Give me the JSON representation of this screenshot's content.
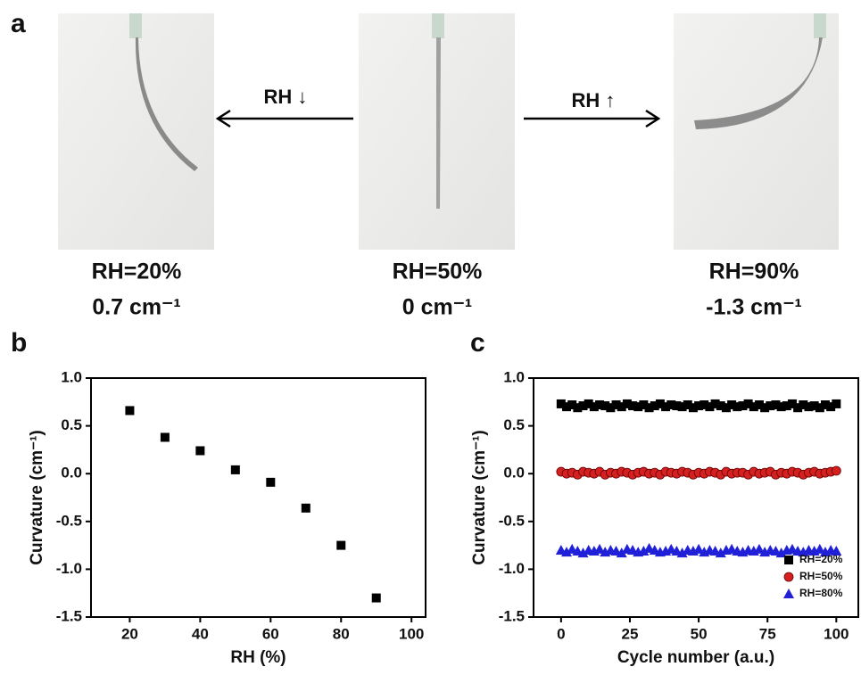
{
  "panel_a": {
    "letter": "a",
    "arrow_left_label": "RH ↓",
    "arrow_right_label": "RH ↑",
    "photos": [
      {
        "rh": "RH=20%",
        "curvature": "0.7 cm⁻¹"
      },
      {
        "rh": "RH=50%",
        "curvature": "0 cm⁻¹"
      },
      {
        "rh": "RH=90%",
        "curvature": "-1.3 cm⁻¹"
      }
    ]
  },
  "chart_data": [
    {
      "type": "scatter",
      "panel_label": "b",
      "xlabel": "RH (%)",
      "ylabel": "Curvature (cm⁻¹)",
      "x": [
        20,
        30,
        40,
        50,
        60,
        70,
        80,
        90
      ],
      "values": [
        0.66,
        0.38,
        0.24,
        0.04,
        -0.09,
        -0.36,
        -0.75,
        -1.3
      ],
      "color": "#000000",
      "marker": "square",
      "xlim": [
        9,
        104
      ],
      "xticks": [
        20,
        40,
        60,
        80,
        100
      ],
      "ylim": [
        -1.5,
        1.0
      ],
      "yticks": [
        -1.5,
        {
          "value": -1.0,
          "label": "-1.0"
        },
        -0.5,
        {
          "value": 0,
          "label": "0.0"
        },
        0.5,
        {
          "value": 1.0,
          "label": "1.0"
        }
      ]
    },
    {
      "type": "scatter",
      "panel_label": "c",
      "xlabel": "Cycle number (a.u.)",
      "ylabel": "Curvature (cm⁻¹)",
      "x": [
        0,
        2,
        4,
        6,
        8,
        10,
        12,
        14,
        16,
        18,
        20,
        22,
        24,
        26,
        28,
        30,
        32,
        34,
        36,
        38,
        40,
        42,
        44,
        46,
        48,
        50,
        52,
        54,
        56,
        58,
        60,
        62,
        64,
        66,
        68,
        70,
        72,
        74,
        76,
        78,
        80,
        82,
        84,
        86,
        88,
        90,
        92,
        94,
        96,
        98,
        100
      ],
      "series": [
        {
          "name": "RH=20%",
          "color": "#000000",
          "marker": "square",
          "values": [
            0.73,
            0.7,
            0.72,
            0.69,
            0.71,
            0.73,
            0.7,
            0.72,
            0.71,
            0.69,
            0.72,
            0.7,
            0.73,
            0.71,
            0.7,
            0.72,
            0.69,
            0.71,
            0.73,
            0.7,
            0.72,
            0.71,
            0.7,
            0.72,
            0.69,
            0.71,
            0.72,
            0.7,
            0.73,
            0.71,
            0.69,
            0.72,
            0.7,
            0.71,
            0.73,
            0.7,
            0.72,
            0.69,
            0.71,
            0.72,
            0.7,
            0.71,
            0.73,
            0.69,
            0.72,
            0.7,
            0.71,
            0.69,
            0.72,
            0.7,
            0.73
          ]
        },
        {
          "name": "RH=50%",
          "color": "#d42020",
          "marker": "circle",
          "values": [
            0.02,
            0.0,
            0.01,
            -0.01,
            0.02,
            0.01,
            0.0,
            0.02,
            -0.01,
            0.01,
            0.0,
            0.02,
            0.01,
            -0.01,
            0.01,
            0.02,
            0.0,
            0.01,
            -0.01,
            0.02,
            0.01,
            0.0,
            0.02,
            0.01,
            -0.01,
            0.01,
            0.0,
            0.02,
            0.01,
            -0.01,
            0.02,
            0.0,
            0.01,
            0.01,
            -0.01,
            0.02,
            0.0,
            0.01,
            0.02,
            -0.01,
            0.01,
            0.0,
            0.02,
            0.01,
            -0.01,
            0.01,
            0.02,
            0.0,
            0.01,
            0.02,
            0.03
          ]
        },
        {
          "name": "RH=80%",
          "color": "#2020d8",
          "marker": "triangle",
          "values": [
            -0.8,
            -0.82,
            -0.79,
            -0.81,
            -0.83,
            -0.8,
            -0.81,
            -0.79,
            -0.82,
            -0.8,
            -0.81,
            -0.83,
            -0.79,
            -0.8,
            -0.82,
            -0.81,
            -0.78,
            -0.8,
            -0.82,
            -0.81,
            -0.79,
            -0.81,
            -0.83,
            -0.8,
            -0.81,
            -0.79,
            -0.82,
            -0.8,
            -0.81,
            -0.83,
            -0.8,
            -0.79,
            -0.81,
            -0.82,
            -0.8,
            -0.81,
            -0.79,
            -0.82,
            -0.8,
            -0.81,
            -0.83,
            -0.8,
            -0.79,
            -0.81,
            -0.82,
            -0.8,
            -0.81,
            -0.79,
            -0.82,
            -0.8,
            -0.81
          ]
        }
      ],
      "legend": "lower right",
      "xlim": [
        -10,
        108
      ],
      "xticks": [
        0,
        25,
        50,
        75,
        100
      ],
      "ylim": [
        -1.5,
        1.0
      ],
      "yticks": [
        -1.5,
        {
          "value": -1.0,
          "label": "-1.0"
        },
        -0.5,
        {
          "value": 0,
          "label": "0.0"
        },
        0.5,
        {
          "value": 1.0,
          "label": "1.0"
        }
      ]
    }
  ]
}
